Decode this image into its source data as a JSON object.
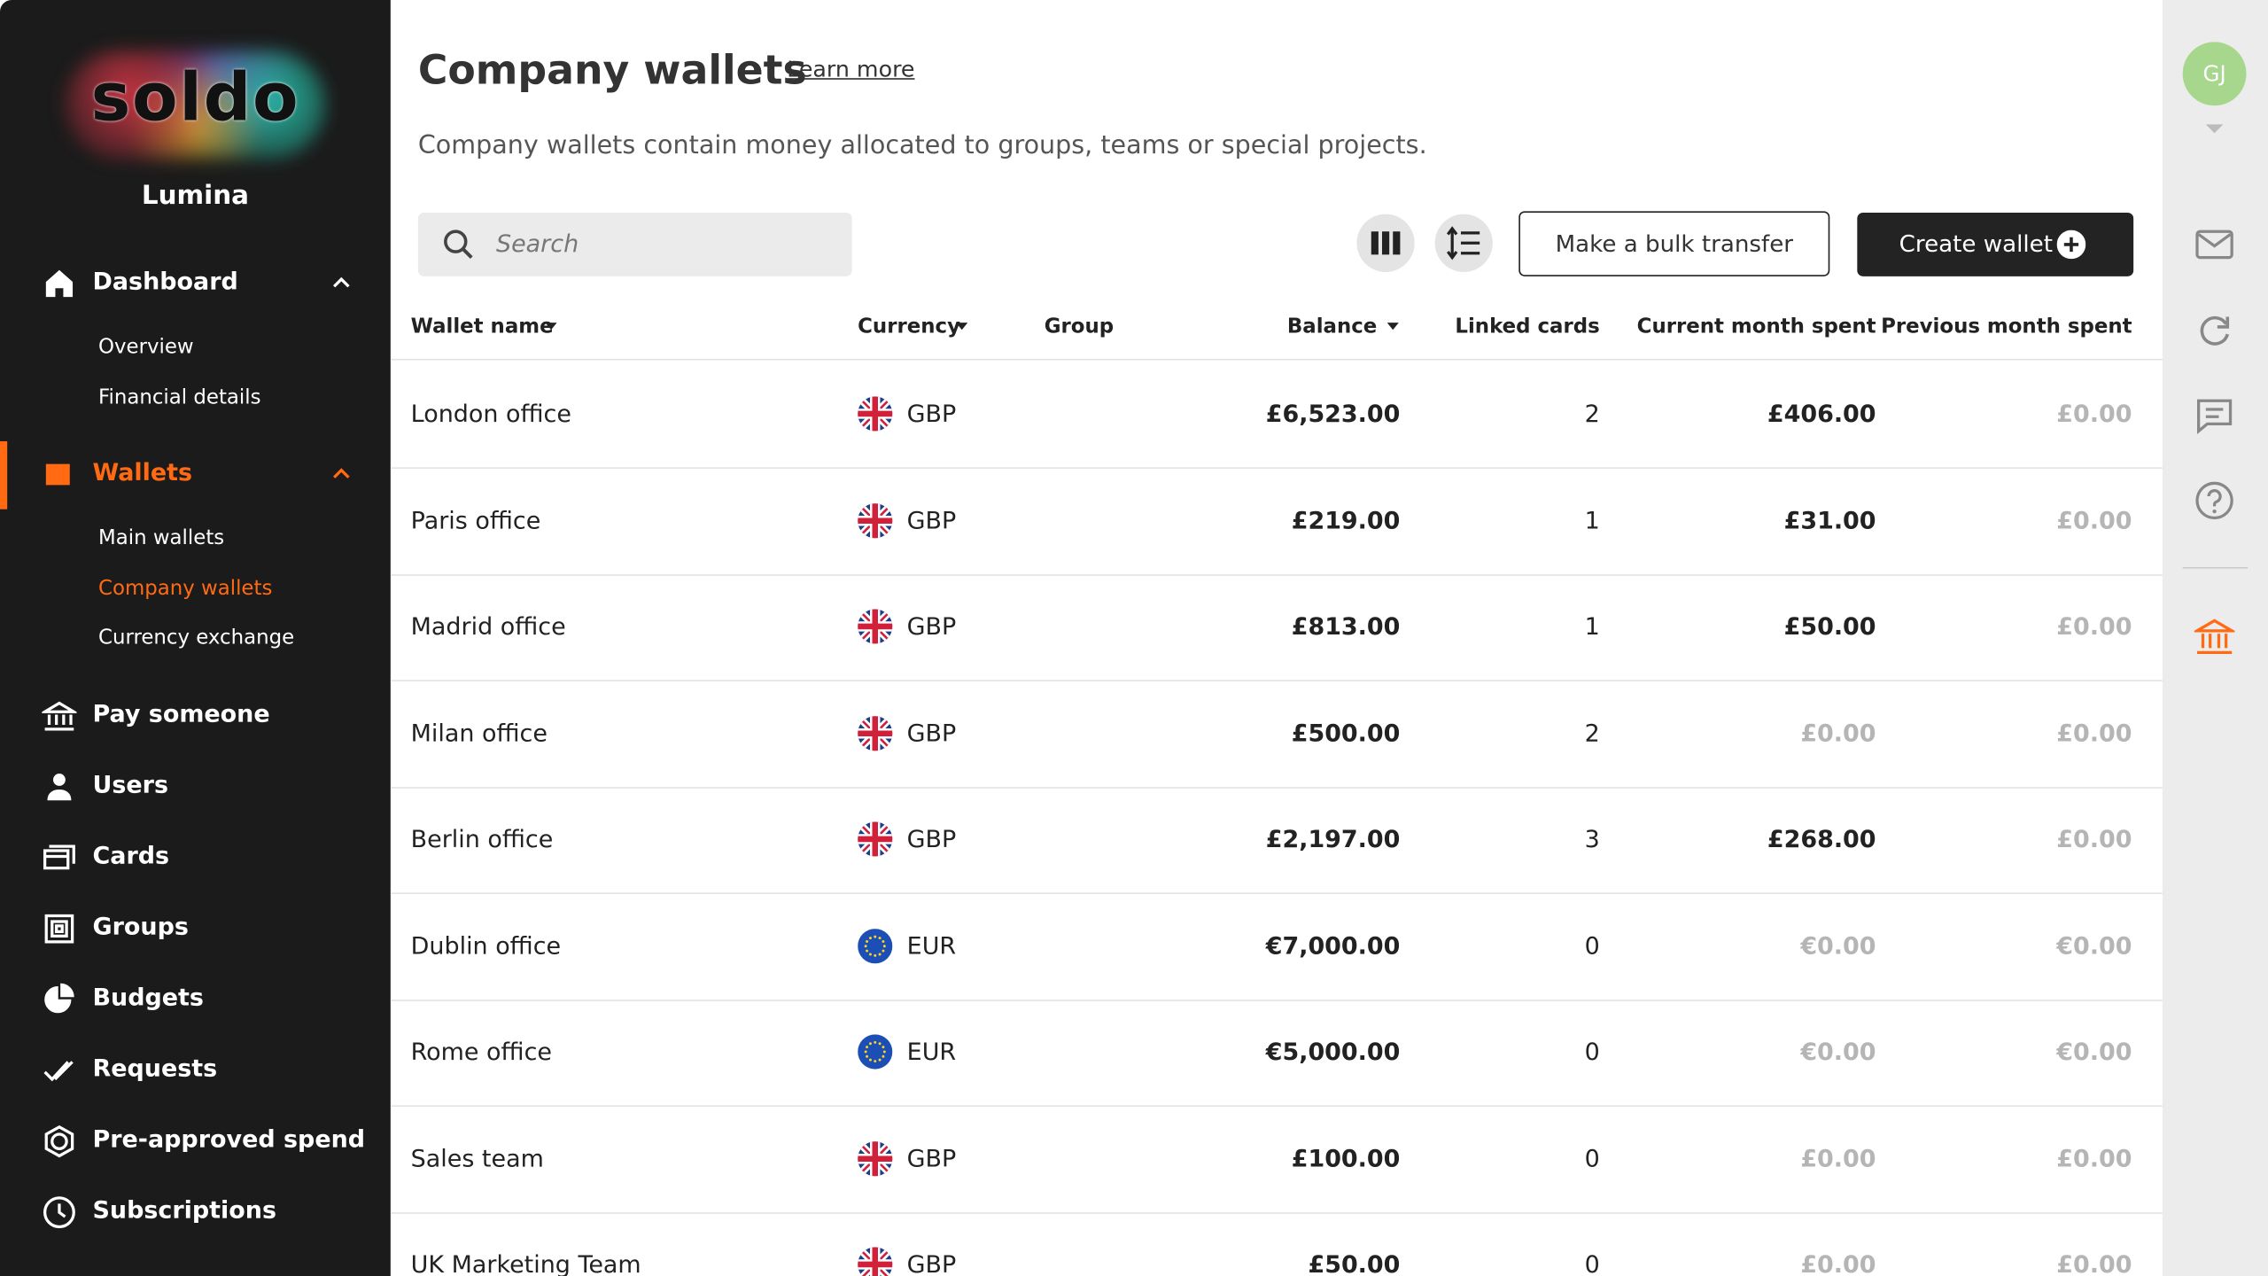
{
  "sidebar": {
    "logo": "soldo",
    "company": "Lumina",
    "nav": [
      {
        "label": "Dashboard",
        "children": [
          "Overview",
          "Financial details"
        ]
      },
      {
        "label": "Wallets",
        "children": [
          "Main wallets",
          "Company wallets",
          "Currency exchange"
        ]
      },
      {
        "label": "Pay someone"
      },
      {
        "label": "Users"
      },
      {
        "label": "Cards"
      },
      {
        "label": "Groups"
      },
      {
        "label": "Budgets"
      },
      {
        "label": "Requests"
      },
      {
        "label": "Pre-approved spend"
      },
      {
        "label": "Subscriptions"
      }
    ]
  },
  "header": {
    "title": "Company wallets",
    "link": "Learn more",
    "description": "Company wallets contain money allocated to groups, teams or special projects."
  },
  "toolbar": {
    "search_placeholder": "Search",
    "bulk_button": "Make a bulk transfer",
    "create_button": "Create wallet"
  },
  "table": {
    "columns": [
      "Wallet name",
      "Currency",
      "Group",
      "Balance",
      "Linked cards",
      "Current month spent",
      "Previous month spent"
    ],
    "rows": [
      {
        "name": "London office",
        "currency": "GBP",
        "balance": "£6,523.00",
        "linked_cards": 2,
        "current_month": "£406.00",
        "previous_month": "£0.00"
      },
      {
        "name": "Paris office",
        "currency": "GBP",
        "balance": "£219.00",
        "linked_cards": 1,
        "current_month": "£31.00",
        "previous_month": "£0.00"
      },
      {
        "name": "Madrid office",
        "currency": "GBP",
        "balance": "£813.00",
        "linked_cards": 1,
        "current_month": "£50.00",
        "previous_month": "£0.00"
      },
      {
        "name": "Milan office",
        "currency": "GBP",
        "balance": "£500.00",
        "linked_cards": 2,
        "current_month": "£0.00",
        "previous_month": "£0.00"
      },
      {
        "name": "Berlin office",
        "currency": "GBP",
        "balance": "£2,197.00",
        "linked_cards": 3,
        "current_month": "£268.00",
        "previous_month": "£0.00"
      },
      {
        "name": "Dublin office",
        "currency": "EUR",
        "balance": "€7,000.00",
        "linked_cards": 0,
        "current_month": "€0.00",
        "previous_month": "€0.00"
      },
      {
        "name": "Rome office",
        "currency": "EUR",
        "balance": "€5,000.00",
        "linked_cards": 0,
        "current_month": "€0.00",
        "previous_month": "€0.00"
      },
      {
        "name": "Sales team",
        "currency": "GBP",
        "balance": "£100.00",
        "linked_cards": 0,
        "current_month": "£0.00",
        "previous_month": "£0.00"
      },
      {
        "name": "UK Marketing Team",
        "currency": "GBP",
        "balance": "£50.00",
        "linked_cards": 0,
        "current_month": "£0.00",
        "previous_month": "£0.00"
      }
    ]
  },
  "user": {
    "initials": "GJ"
  }
}
